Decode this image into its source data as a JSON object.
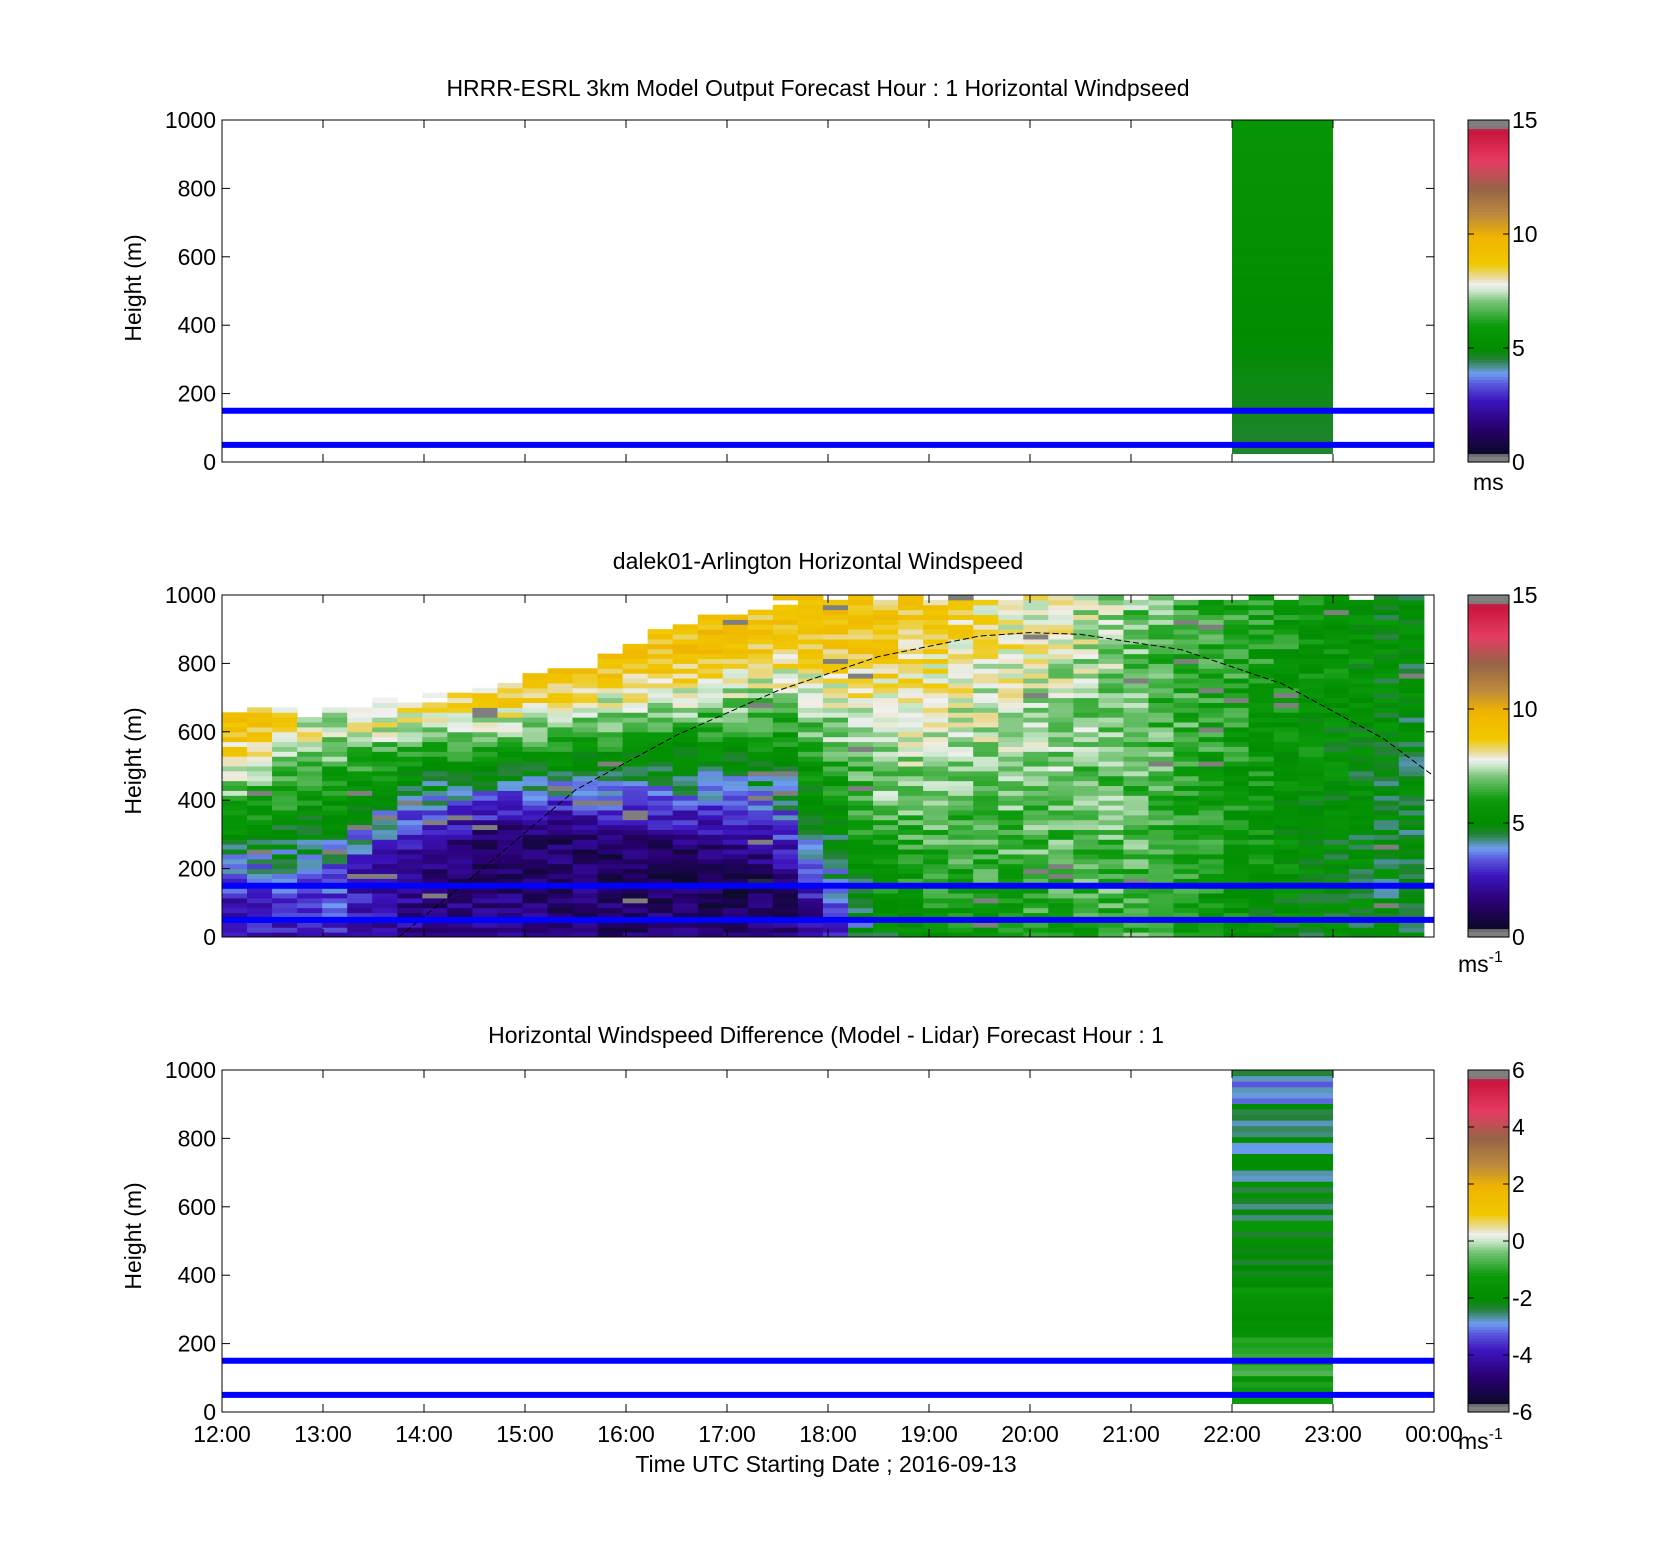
{
  "chart_data": [
    {
      "type": "heatmap",
      "title": "HRRR-ESRL 3km Model Output   Forecast Hour : 1 Horizontal Windpseed",
      "ylabel": "Height (m)",
      "xlim": [
        12,
        24
      ],
      "ylim": [
        0,
        1000
      ],
      "x_ticks": [
        "12:00",
        "13:00",
        "14:00",
        "15:00",
        "16:00",
        "17:00",
        "18:00",
        "19:00",
        "20:00",
        "21:00",
        "22:00",
        "23:00",
        "00:00"
      ],
      "y_ticks": [
        0,
        200,
        400,
        600,
        800,
        1000
      ],
      "show_x_tick_labels": false,
      "colorbar": {
        "ticks": [
          0,
          5,
          10,
          15
        ],
        "unit": "ms",
        "unit_exp": "",
        "range": [
          0,
          15
        ],
        "scheme": "speed"
      },
      "reference_heights": [
        50,
        150
      ],
      "reference_line_color": "#0000ff",
      "columns": [
        {
          "x_start": 22.0,
          "x_end": 23.0,
          "y_start": 25,
          "y_end": 1000,
          "value_bottom": 4.6,
          "value_top": 5.6
        }
      ]
    },
    {
      "type": "heatmap",
      "title": "dalek01-Arlington  Horizontal Windspeed",
      "ylabel": "Height (m)",
      "xlim": [
        12,
        24
      ],
      "ylim": [
        0,
        1000
      ],
      "x_ticks": [
        "12:00",
        "13:00",
        "14:00",
        "15:00",
        "16:00",
        "17:00",
        "18:00",
        "19:00",
        "20:00",
        "21:00",
        "22:00",
        "23:00",
        "00:00"
      ],
      "y_ticks": [
        0,
        200,
        400,
        600,
        800,
        1000
      ],
      "show_x_tick_labels": false,
      "colorbar": {
        "ticks": [
          0,
          5,
          10,
          15
        ],
        "unit": "ms",
        "unit_exp": "-1",
        "range": [
          0,
          15
        ],
        "scheme": "speed"
      },
      "reference_heights": [
        50,
        150
      ],
      "reference_line_color": "#0000ff",
      "boundary_layer_curve": {
        "x": [
          13.75,
          14.5,
          15.5,
          16.5,
          17.5,
          18.5,
          19.5,
          20.0,
          20.5,
          21.5,
          22.5,
          23.5,
          24.0
        ],
        "y": [
          0,
          180,
          430,
          590,
          720,
          820,
          880,
          890,
          885,
          840,
          740,
          580,
          470
        ]
      },
      "lidar_profile": {
        "x": [
          12.0,
          13.0,
          14.0,
          15.0,
          16.0,
          17.0,
          17.5,
          18.0,
          18.5,
          19.0,
          20.0,
          21.0,
          22.0,
          23.0,
          23.9
        ],
        "top_height": [
          660,
          660,
          700,
          750,
          850,
          950,
          980,
          1000,
          1000,
          1000,
          1000,
          1000,
          1000,
          1000,
          1000
        ],
        "jet_height": [
          620,
          600,
          650,
          700,
          780,
          850,
          870,
          880,
          900,
          900,
          900,
          850,
          800,
          780,
          750
        ],
        "jet_speed": [
          9.5,
          7.5,
          8.0,
          8.8,
          9.0,
          9.2,
          9.0,
          9.0,
          9.0,
          8.5,
          8.0,
          7.0,
          6.2,
          5.5,
          5.0
        ],
        "min_height": [
          100,
          150,
          250,
          300,
          250,
          200,
          150,
          0,
          0,
          0,
          0,
          0,
          0,
          0,
          0
        ],
        "min_speed": [
          2.5,
          3.5,
          1.5,
          1.3,
          1.2,
          1.0,
          0.9,
          2.5,
          5.0,
          5.5,
          6.0,
          6.5,
          5.5,
          5.0,
          4.5
        ],
        "surface_speed": [
          2.0,
          3.0,
          2.0,
          1.8,
          1.5,
          1.5,
          1.5,
          2.5,
          4.5,
          5.0,
          5.5,
          5.5,
          4.5,
          4.0,
          3.5
        ]
      }
    },
    {
      "type": "heatmap",
      "title": "Horizontal Windspeed Difference (Model - Lidar) Forecast Hour : 1",
      "ylabel": "Height (m)",
      "xlabel": "Time UTC  Starting Date ; 2016-09-13",
      "xlim": [
        12,
        24
      ],
      "ylim": [
        0,
        1000
      ],
      "x_ticks": [
        "12:00",
        "13:00",
        "14:00",
        "15:00",
        "16:00",
        "17:00",
        "18:00",
        "19:00",
        "20:00",
        "21:00",
        "22:00",
        "23:00",
        "00:00"
      ],
      "y_ticks": [
        0,
        200,
        400,
        600,
        800,
        1000
      ],
      "show_x_tick_labels": true,
      "colorbar": {
        "ticks": [
          -6,
          -4,
          -2,
          0,
          2,
          4,
          6
        ],
        "unit": "ms",
        "unit_exp": "-1",
        "range": [
          -6,
          6
        ],
        "scheme": "diff"
      },
      "reference_heights": [
        50,
        150
      ],
      "reference_line_color": "#0000ff",
      "columns": [
        {
          "x_start": 22.0,
          "x_end": 23.0,
          "y_start": 25,
          "y_end": 1000,
          "value_bottom": -1.0,
          "value_top": -2.8
        }
      ]
    }
  ]
}
